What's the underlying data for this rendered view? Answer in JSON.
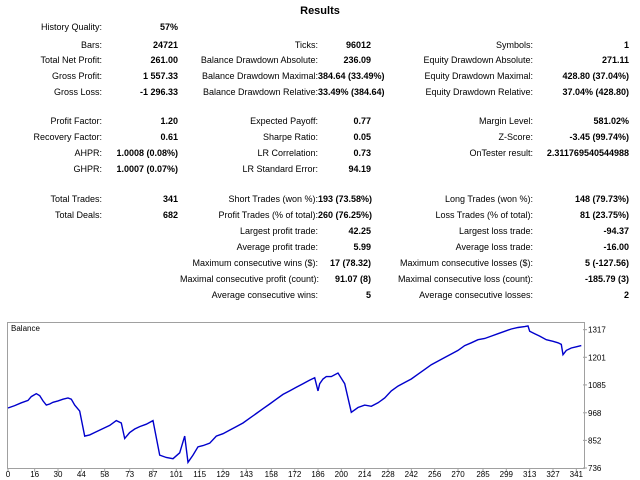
{
  "title": "Results",
  "rows": [
    {
      "cells": [
        [
          "History Quality:",
          "57%"
        ],
        null,
        null
      ]
    },
    {
      "cells": [
        [
          "Bars:",
          "24721"
        ],
        [
          "Ticks:",
          "96012"
        ],
        [
          "Symbols:",
          "1"
        ]
      ]
    },
    {
      "cells": [
        [
          "Total Net Profit:",
          "261.00"
        ],
        [
          "Balance Drawdown Absolute:",
          "236.09"
        ],
        [
          "Equity Drawdown Absolute:",
          "271.11"
        ]
      ]
    },
    {
      "cells": [
        [
          "Gross Profit:",
          "1 557.33"
        ],
        [
          "Balance Drawdown Maximal:",
          "384.64 (33.49%)"
        ],
        [
          "Equity Drawdown Maximal:",
          "428.80 (37.04%)"
        ]
      ]
    },
    {
      "cells": [
        [
          "Gross Loss:",
          "-1 296.33"
        ],
        [
          "Balance Drawdown Relative:",
          "33.49% (384.64)"
        ],
        [
          "Equity Drawdown Relative:",
          "37.04% (428.80)"
        ]
      ]
    },
    {
      "cells": [
        [
          "Profit Factor:",
          "1.20"
        ],
        [
          "Expected Payoff:",
          "0.77"
        ],
        [
          "Margin Level:",
          "581.02%"
        ]
      ]
    },
    {
      "cells": [
        [
          "Recovery Factor:",
          "0.61"
        ],
        [
          "Sharpe Ratio:",
          "0.05"
        ],
        [
          "Z-Score:",
          "-3.45 (99.74%)"
        ]
      ]
    },
    {
      "cells": [
        [
          "AHPR:",
          "1.0008 (0.08%)"
        ],
        [
          "LR Correlation:",
          "0.73"
        ],
        [
          "OnTester result:",
          "2.311769540544988"
        ]
      ]
    },
    {
      "cells": [
        [
          "GHPR:",
          "1.0007 (0.07%)"
        ],
        [
          "LR Standard Error:",
          "94.19"
        ],
        null
      ]
    },
    {
      "cells": [
        [
          "Total Trades:",
          "341"
        ],
        [
          "Short Trades (won %):",
          "193 (73.58%)"
        ],
        [
          "Long Trades (won %):",
          "148 (79.73%)"
        ]
      ]
    },
    {
      "cells": [
        [
          "Total Deals:",
          "682"
        ],
        [
          "Profit Trades (% of total):",
          "260 (76.25%)"
        ],
        [
          "Loss Trades (% of total):",
          "81 (23.75%)"
        ]
      ]
    },
    {
      "cells": [
        null,
        [
          "Largest profit trade:",
          "42.25"
        ],
        [
          "Largest loss trade:",
          "-94.37"
        ]
      ]
    },
    {
      "cells": [
        null,
        [
          "Average profit trade:",
          "5.99"
        ],
        [
          "Average loss trade:",
          "-16.00"
        ]
      ]
    },
    {
      "cells": [
        null,
        [
          "Maximum consecutive wins ($):",
          "17 (78.32)"
        ],
        [
          "Maximum consecutive losses ($):",
          "5 (-127.56)"
        ]
      ]
    },
    {
      "cells": [
        null,
        [
          "Maximal consecutive profit (count):",
          "91.07 (8)"
        ],
        [
          "Maximal consecutive loss (count):",
          "-185.79 (3)"
        ]
      ]
    },
    {
      "cells": [
        null,
        [
          "Average consecutive wins:",
          "5"
        ],
        [
          "Average consecutive losses:",
          "2"
        ]
      ]
    }
  ],
  "chart_data": {
    "type": "line",
    "title": "Balance",
    "xlabel": "",
    "ylabel": "",
    "color": "#0000cc",
    "x_ticks": [
      "0",
      "16",
      "30",
      "44",
      "58",
      "73",
      "87",
      "101",
      "115",
      "129",
      "143",
      "158",
      "172",
      "186",
      "200",
      "214",
      "228",
      "242",
      "256",
      "270",
      "285",
      "299",
      "313",
      "327",
      "341"
    ],
    "y_ticks": [
      "1317",
      "1201",
      "1085",
      "968",
      "852",
      "736"
    ],
    "xlim": [
      0,
      345
    ],
    "ylim": [
      736,
      1345
    ],
    "grid": false,
    "series": [
      {
        "x": [
          0,
          4,
          8,
          12,
          14,
          17,
          19,
          21,
          23,
          25,
          27,
          30,
          33,
          36,
          38,
          40,
          43,
          46,
          49,
          52,
          55,
          58,
          61,
          65,
          68,
          70,
          73,
          76,
          79,
          83,
          87,
          91,
          95,
          99,
          103,
          106,
          108,
          111,
          114,
          117,
          121,
          125,
          129,
          133,
          137,
          141,
          145,
          149,
          153,
          157,
          161,
          165,
          169,
          173,
          177,
          181,
          184,
          186,
          187,
          189,
          191,
          194,
          198,
          202,
          206,
          210,
          214,
          218,
          222,
          226,
          230,
          234,
          238,
          242,
          246,
          250,
          254,
          258,
          262,
          266,
          270,
          274,
          278,
          282,
          286,
          290,
          294,
          298,
          302,
          306,
          310,
          312,
          313,
          316,
          319,
          323,
          327,
          330,
          332,
          333,
          335,
          338,
          341,
          344
        ],
        "y": [
          988,
          998,
          1010,
          1020,
          1036,
          1048,
          1040,
          1018,
          1000,
          1005,
          1012,
          1018,
          1025,
          1030,
          1025,
          1000,
          975,
          870,
          875,
          885,
          895,
          905,
          915,
          935,
          925,
          860,
          885,
          900,
          910,
          920,
          935,
          790,
          780,
          775,
          800,
          870,
          760,
          790,
          825,
          830,
          840,
          870,
          880,
          895,
          910,
          925,
          945,
          965,
          985,
          1005,
          1025,
          1045,
          1060,
          1075,
          1090,
          1105,
          1115,
          1060,
          1090,
          1110,
          1120,
          1120,
          1135,
          1090,
          970,
          990,
          1000,
          995,
          1010,
          1030,
          1060,
          1080,
          1095,
          1110,
          1130,
          1150,
          1170,
          1185,
          1200,
          1215,
          1230,
          1250,
          1262,
          1275,
          1280,
          1290,
          1300,
          1310,
          1320,
          1326,
          1330,
          1333,
          1310,
          1300,
          1290,
          1275,
          1268,
          1262,
          1255,
          1212,
          1230,
          1240,
          1245,
          1250
        ]
      }
    ]
  }
}
